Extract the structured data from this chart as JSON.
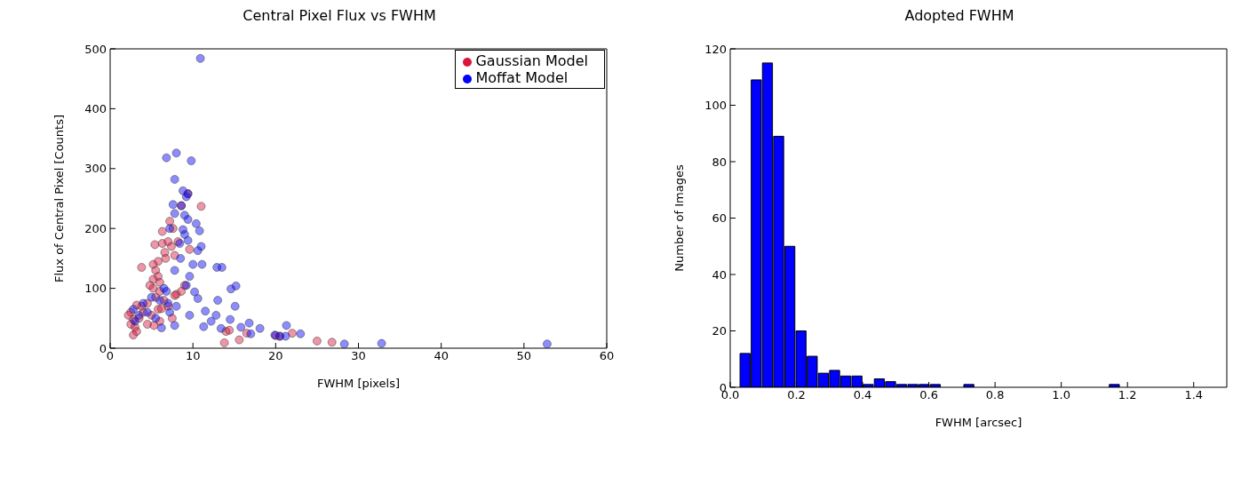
{
  "chart_data": [
    {
      "type": "scatter",
      "title": "Central Pixel Flux vs FWHM",
      "xlabel": "FWHM [pixels]",
      "ylabel": "Flux of Central Pixel [Counts]",
      "xlim": [
        0,
        60
      ],
      "xticks": [
        0,
        10,
        20,
        30,
        40,
        50,
        60
      ],
      "ylim": [
        0,
        500
      ],
      "yticks": [
        0,
        100,
        200,
        300,
        400,
        500
      ],
      "legend": "top right",
      "marker": "circle",
      "series": [
        {
          "name": "Gaussian Model",
          "color": "#dc143c",
          "x": [
            9.4,
            11,
            8.6,
            7.2,
            7.6,
            6.3,
            6.3,
            5.4,
            7,
            7.4,
            8.2,
            9.6,
            6.6,
            7.8,
            5.8,
            5.2,
            6.7,
            5.5,
            5.8,
            5.2,
            6,
            3.8,
            4.8,
            5.2,
            6,
            5.5,
            8,
            9,
            8.6,
            7.8,
            4.5,
            3.8,
            3.2,
            2.5,
            2.8,
            2.5,
            3,
            2.8,
            3.2,
            4.5,
            5.3,
            6,
            5.8,
            7,
            6.5,
            4,
            3.5,
            2.2,
            14,
            13.8,
            15.6,
            16.5,
            20,
            20.5,
            22,
            25,
            26.8,
            14.4,
            7.5,
            6.2,
            5
          ],
          "values": [
            258,
            237,
            238,
            212,
            200,
            195,
            175,
            173,
            178,
            170,
            178,
            165,
            160,
            155,
            145,
            140,
            150,
            130,
            120,
            115,
            110,
            135,
            105,
            100,
            95,
            85,
            90,
            105,
            95,
            88,
            75,
            70,
            72,
            60,
            48,
            40,
            35,
            22,
            28,
            40,
            38,
            45,
            65,
            70,
            80,
            60,
            50,
            55,
            28,
            9,
            14,
            25,
            21,
            20,
            25,
            12,
            10,
            30,
            50,
            66,
            55
          ]
        },
        {
          "name": "Moffat Model",
          "color": "#0000ff",
          "x": [
            10.9,
            8,
            6.8,
            9.8,
            7.8,
            8.8,
            9.4,
            9.2,
            7.6,
            8.6,
            7.8,
            9,
            9.4,
            10.4,
            7.2,
            8.8,
            9,
            10.8,
            9.4,
            8.4,
            11,
            10.6,
            12.9,
            13.5,
            9.6,
            10,
            11.1,
            15.2,
            14.6,
            10.2,
            10.6,
            11.5,
            12.8,
            15.1,
            14.5,
            13.4,
            16.8,
            15.8,
            18.1,
            17,
            19.9,
            21.3,
            20.5,
            21.2,
            23,
            28.3,
            32.8,
            52.8,
            7.8,
            11.3,
            6.2,
            9.2,
            6.8,
            5,
            6,
            7,
            8,
            4,
            3.5,
            4.5,
            5.5,
            3,
            2.8,
            7.2,
            6.5,
            8.5,
            7.8,
            12.2,
            13,
            9.6
          ],
          "values": [
            484,
            326,
            318,
            313,
            282,
            263,
            258,
            253,
            240,
            238,
            225,
            222,
            215,
            208,
            200,
            198,
            190,
            196,
            180,
            175,
            170,
            163,
            135,
            135,
            120,
            140,
            140,
            104,
            99,
            94,
            83,
            62,
            55,
            70,
            48,
            33,
            42,
            35,
            33,
            24,
            22,
            38,
            20,
            20,
            24,
            7,
            8,
            7,
            38,
            36,
            34,
            105,
            95,
            85,
            80,
            75,
            70,
            75,
            55,
            60,
            50,
            45,
            65,
            60,
            100,
            150,
            130,
            45,
            80,
            55
          ]
        }
      ]
    },
    {
      "type": "histogram",
      "title": "Adopted FWHM",
      "xlabel": "FWHM [arcsec]",
      "ylabel": "Number of Images",
      "color": "#0000ff",
      "bins": [
        0.027,
        0.0608,
        0.0946,
        0.1284,
        0.1622,
        0.196,
        0.2298,
        0.2636,
        0.2974,
        0.3312,
        0.365,
        0.3988,
        0.4326,
        0.4664,
        0.5002,
        0.534,
        0.5678,
        0.6016,
        0.6354,
        0.6692,
        0.703,
        0.7368,
        0.7706,
        0.8044,
        0.8382,
        0.872,
        0.9058,
        0.9396,
        0.9734,
        1.0072,
        1.041,
        1.0748,
        1.1086,
        1.1424,
        1.1762,
        1.21,
        1.2438,
        1.2776
      ],
      "values": [
        12,
        109,
        115,
        89,
        50,
        20,
        11,
        5,
        6,
        4,
        4,
        1,
        3,
        2,
        1,
        1,
        1,
        1,
        0,
        0,
        1,
        0,
        0,
        0,
        0,
        0,
        0,
        0,
        0,
        0,
        0,
        0,
        0,
        1,
        0,
        0,
        0
      ],
      "xlim": [
        0,
        1.5
      ],
      "xticks": [
        {
          "value": 0,
          "label": "0.0"
        },
        0.2,
        0.4,
        0.6,
        0.8,
        {
          "value": 1,
          "label": "1.0"
        },
        1.2,
        1.4
      ],
      "ylim": [
        0,
        120
      ],
      "yticks": [
        0,
        20,
        40,
        60,
        80,
        100,
        120
      ]
    }
  ]
}
